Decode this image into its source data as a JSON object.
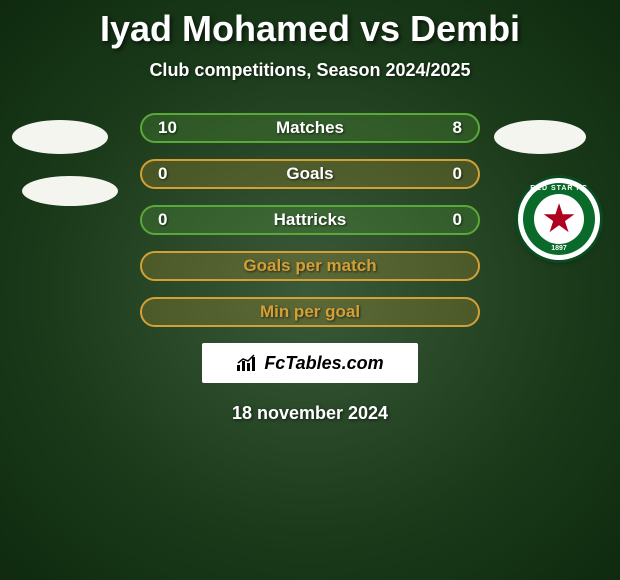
{
  "title": "Iyad Mohamed vs Dembi",
  "subtitle": "Club competitions, Season 2024/2025",
  "stat_rows": [
    {
      "left": "10",
      "label": "Matches",
      "right": "8",
      "border": "#5aa83a",
      "bg": "rgba(90,168,58,0.25)",
      "text": "#ffffff"
    },
    {
      "left": "0",
      "label": "Goals",
      "right": "0",
      "border": "#d4a036",
      "bg": "rgba(212,160,54,0.22)",
      "text": "#ffffff"
    },
    {
      "left": "0",
      "label": "Hattricks",
      "right": "0",
      "border": "#5aa83a",
      "bg": "rgba(90,168,58,0.25)",
      "text": "#ffffff"
    },
    {
      "left": "",
      "label": "Goals per match",
      "right": "",
      "border": "#d4a036",
      "bg": "rgba(212,160,54,0.22)",
      "text": "#d4a036"
    },
    {
      "left": "",
      "label": "Min per goal",
      "right": "",
      "border": "#d4a036",
      "bg": "rgba(212,160,54,0.22)",
      "text": "#d4a036"
    }
  ],
  "brand": "FcTables.com",
  "date": "18 november 2024",
  "right_badge": {
    "top_text": "RED STAR FC",
    "bottom_text": "1897"
  },
  "colors": {
    "title": "#ffffff",
    "shadow": "rgba(0,0,0,0.6)"
  }
}
